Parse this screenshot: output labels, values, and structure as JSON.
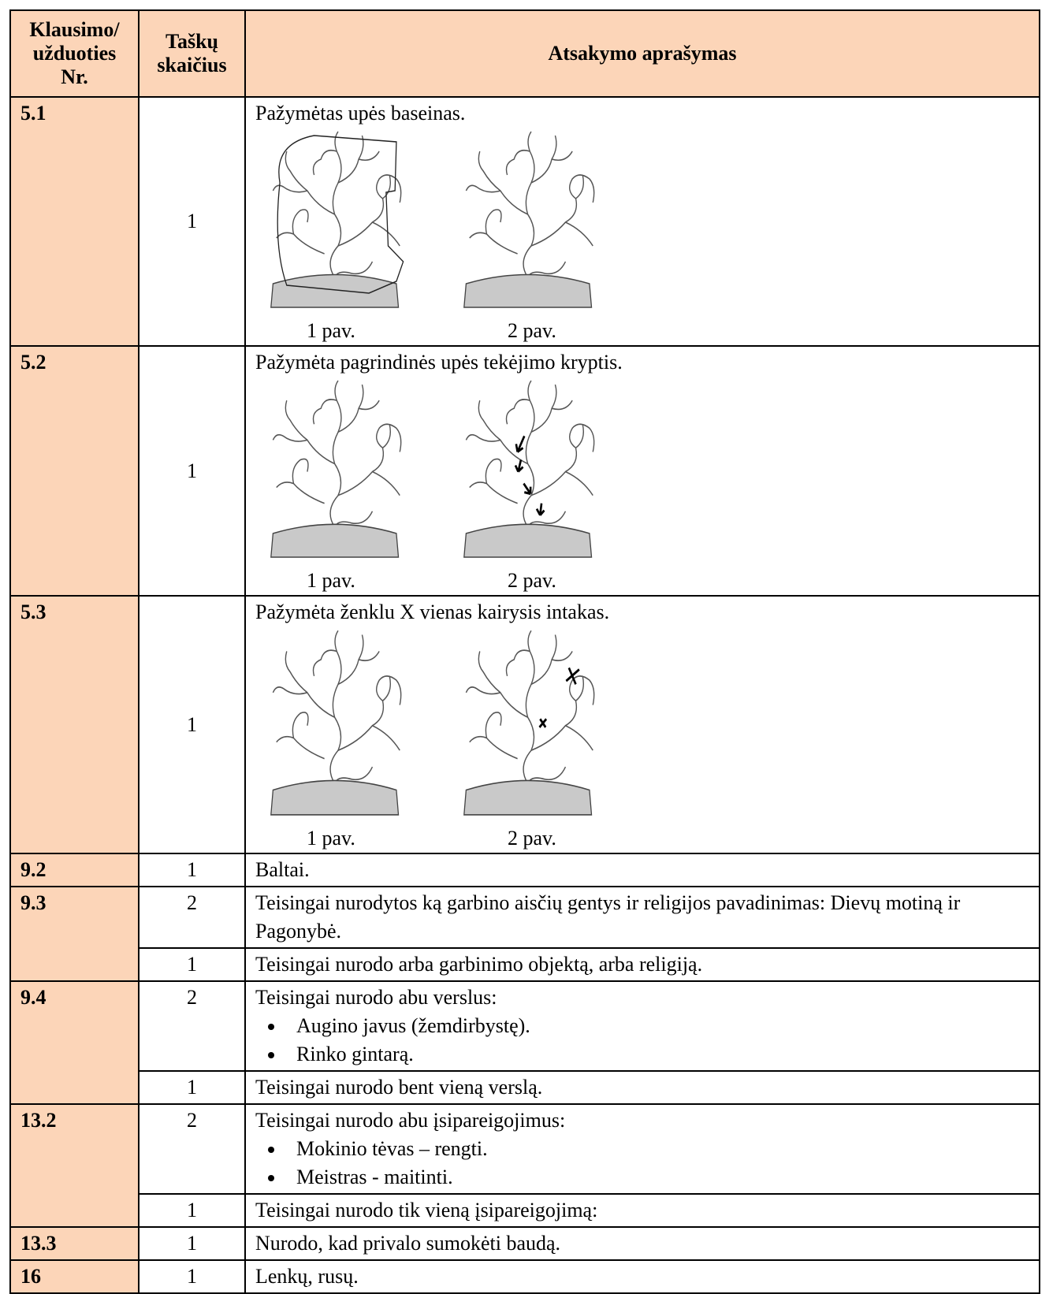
{
  "header": {
    "columns": [
      "Klausimo/ užduoties Nr.",
      "Taškų skaičius",
      "Atsakymo aprašymas"
    ]
  },
  "rows": [
    {
      "number": "5.1",
      "points": 1,
      "answer": "Pažymėtas upės baseinas.",
      "figures": [
        "1 pav.",
        "2 pav."
      ]
    },
    {
      "number": "5.2",
      "points": 1,
      "answer": "Pažymėta pagrindinės upės tekėjimo kryptis.",
      "figures": [
        "1 pav.",
        "2 pav."
      ]
    },
    {
      "number": "5.3",
      "points": 1,
      "answer": "Pažymėta ženklu X vienas kairysis intakas.",
      "figures": [
        "1 pav.",
        "2 pav."
      ]
    },
    {
      "number": "9.2",
      "points": 1,
      "answer": "Baltai."
    },
    {
      "number": "9.3",
      "parts": [
        {
          "points": 2,
          "answer": "Teisingai nurodytos ką garbino aisčių gentys ir religijos pavadinimas: Dievų motiną ir Pagonybė."
        },
        {
          "points": 1,
          "answer": "Teisingai nurodo arba garbinimo objektą, arba religiją."
        }
      ]
    },
    {
      "number": "9.4",
      "parts": [
        {
          "points": 2,
          "answer": "Teisingai nurodo abu verslus:",
          "items": [
            "Augino javus (žemdirbystę).",
            "Rinko gintarą."
          ]
        },
        {
          "points": 1,
          "answer": "Teisingai nurodo bent vieną verslą."
        }
      ]
    },
    {
      "number": "13.2",
      "parts": [
        {
          "points": 2,
          "answer": "Teisingai nurodo abu įsipareigojimus:",
          "items": [
            "Mokinio tėvas – rengti.",
            "Meistras - maitinti."
          ]
        },
        {
          "points": 1,
          "answer": "Teisingai nurodo tik vieną įsipareigojimą:"
        }
      ]
    },
    {
      "number": "13.3",
      "points": 1,
      "answer": "Nurodo, kad privalo sumokėti baudą."
    },
    {
      "number": "16",
      "points": 1,
      "answer": "Lenkų, rusų."
    }
  ]
}
